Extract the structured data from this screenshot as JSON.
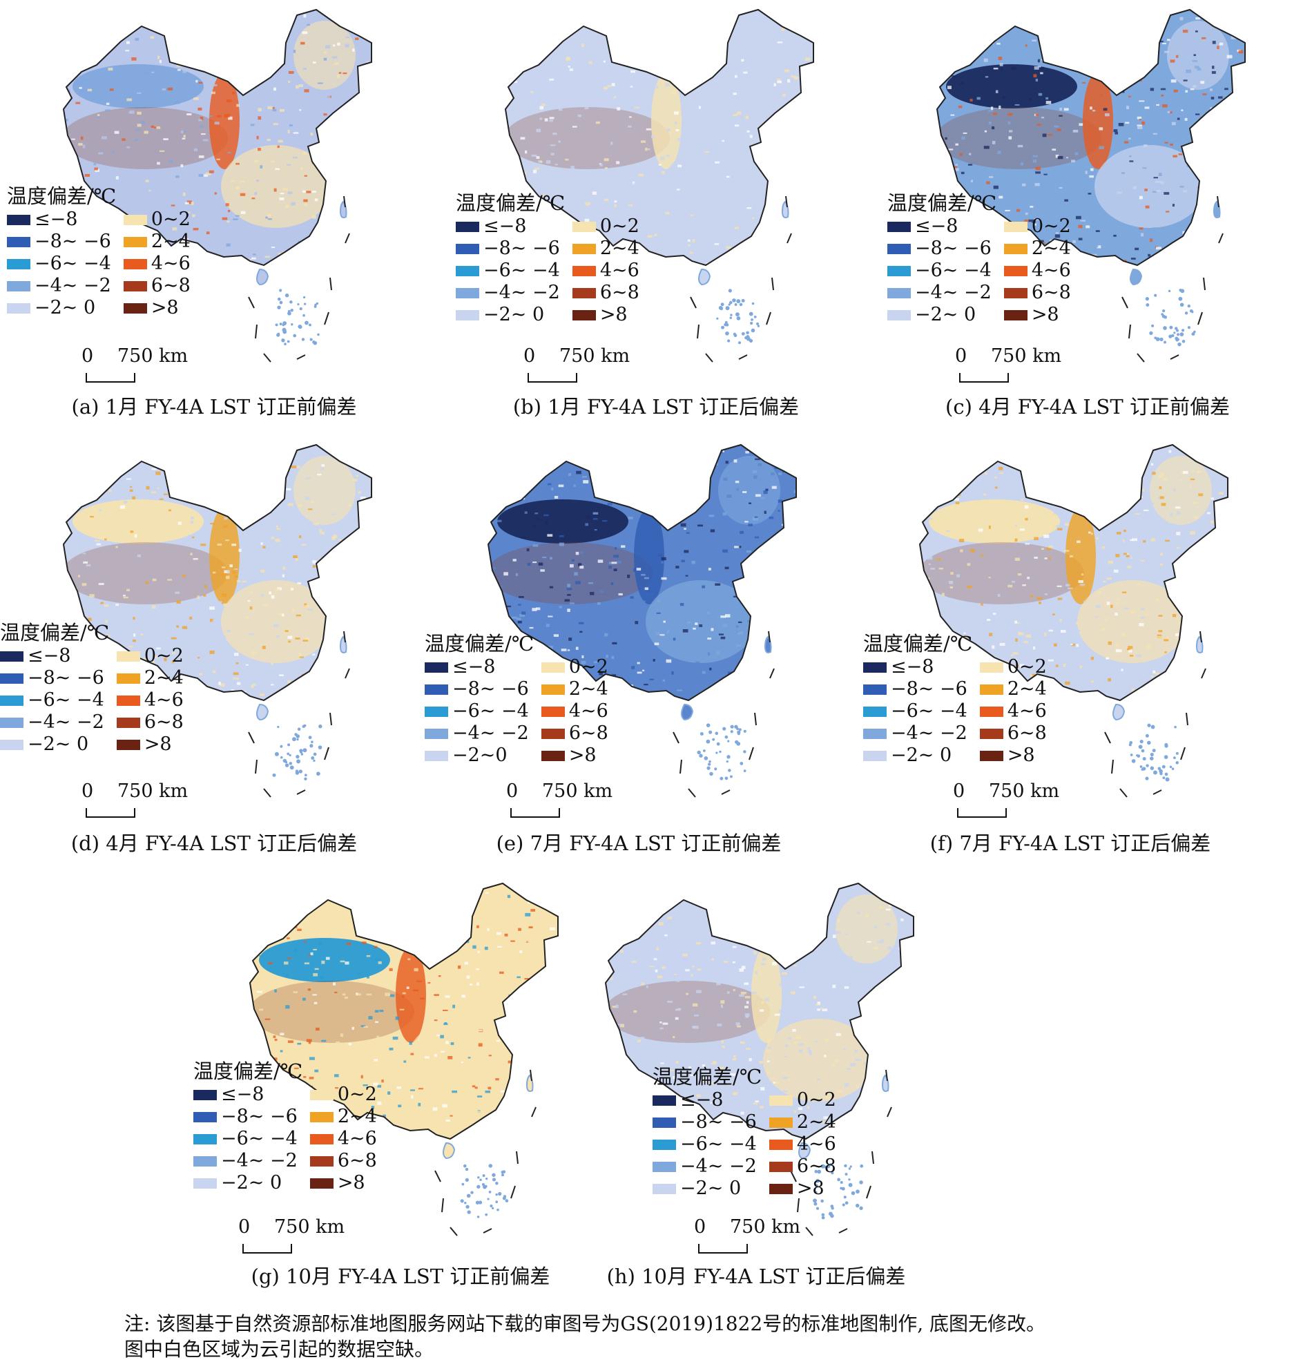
{
  "legend": {
    "title": "温度偏差/℃",
    "left_items": [
      {
        "label": "≤−8",
        "color": "#1b2a5e"
      },
      {
        "label": "−8~ −6",
        "color": "#2f5db3"
      },
      {
        "label": "−6~ −4",
        "color": "#2a9bd3"
      },
      {
        "label": "−4~ −2",
        "color": "#7fa8dd"
      },
      {
        "label": "−2~ 0",
        "color": "#c9d4ef"
      }
    ],
    "left_items_e": [
      {
        "label": "≤−8",
        "color": "#1b2a5e"
      },
      {
        "label": "−8~ −6",
        "color": "#2f5db3"
      },
      {
        "label": "−6~ −4",
        "color": "#2a9bd3"
      },
      {
        "label": "−4~ −2",
        "color": "#7fa8dd"
      },
      {
        "label": "−2~0",
        "color": "#c9d4ef"
      }
    ],
    "right_items": [
      {
        "label": "0~2",
        "color": "#f6e3b0"
      },
      {
        "label": "2~4",
        "color": "#f0a224"
      },
      {
        "label": "4~6",
        "color": "#e85a1e"
      },
      {
        "label": "6~8",
        "color": "#a53b1c"
      },
      {
        "label": ">8",
        "color": "#6a2212"
      }
    ]
  },
  "scalebar": {
    "zero": "0",
    "distance": "750 km"
  },
  "panels": [
    {
      "id": "a",
      "caption": "(a) 1月 FY-4A LST 订正前偏差"
    },
    {
      "id": "b",
      "caption": "(b) 1月 FY-4A LST 订正后偏差"
    },
    {
      "id": "c",
      "caption": "(c) 4月 FY-4A LST 订正前偏差"
    },
    {
      "id": "d",
      "caption": "(d) 4月 FY-4A LST 订正后偏差"
    },
    {
      "id": "e",
      "caption": "(e) 7月 FY-4A LST 订正前偏差"
    },
    {
      "id": "f",
      "caption": "(f) 7月 FY-4A LST 订正后偏差"
    },
    {
      "id": "g",
      "caption": "(g) 10月 FY-4A LST 订正前偏差"
    },
    {
      "id": "h",
      "caption": "(h) 10月 FY-4A LST 订正后偏差"
    }
  ],
  "note": {
    "line1": "注: 该图基于自然资源部标准地图服务网站下载的审图号为GS(2019)1822号的标准地图制作, 底图无修改。",
    "line2": "图中白色区域为云引起的数据空缺。"
  },
  "palettes": {
    "a": {
      "base": "#b8c6ea",
      "west": "#7fa8dd",
      "band": "#e85a1e",
      "south": "#f6e3b0"
    },
    "b": {
      "base": "#c9d4ef",
      "west": "#c9d4ef",
      "band": "#f6e3b0",
      "south": "#c9d4ef"
    },
    "c": {
      "base": "#7fa8dd",
      "west": "#1b2a5e",
      "band": "#e85a1e",
      "south": "#c9d4ef"
    },
    "d": {
      "base": "#c9d4ef",
      "west": "#f6e3b0",
      "band": "#f0a224",
      "south": "#f6e3b0"
    },
    "e": {
      "base": "#5b85cc",
      "west": "#1b2a5e",
      "band": "#2f5db3",
      "south": "#7fa8dd"
    },
    "f": {
      "base": "#c9d4ef",
      "west": "#f6e3b0",
      "band": "#f0a224",
      "south": "#f6e3b0"
    },
    "g": {
      "base": "#f6e3b0",
      "west": "#2a9bd3",
      "band": "#e85a1e",
      "south": "#f6e3b0"
    },
    "h": {
      "base": "#c9d4ef",
      "west": "#c9d4ef",
      "band": "#f6e3b0",
      "south": "#f6e3b0"
    }
  }
}
